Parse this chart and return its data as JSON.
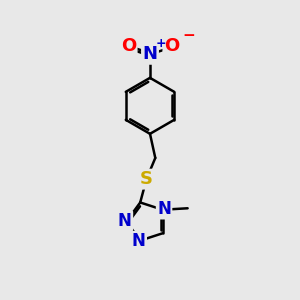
{
  "bg_color": "#e8e8e8",
  "bond_color": "#000000",
  "bond_width": 1.8,
  "atom_colors": {
    "N": "#0000cc",
    "O": "#ff0000",
    "S": "#ccaa00",
    "C": "#000000"
  },
  "fig_size": [
    3.0,
    3.0
  ],
  "dpi": 100,
  "xlim": [
    0,
    10
  ],
  "ylim": [
    0,
    10
  ]
}
